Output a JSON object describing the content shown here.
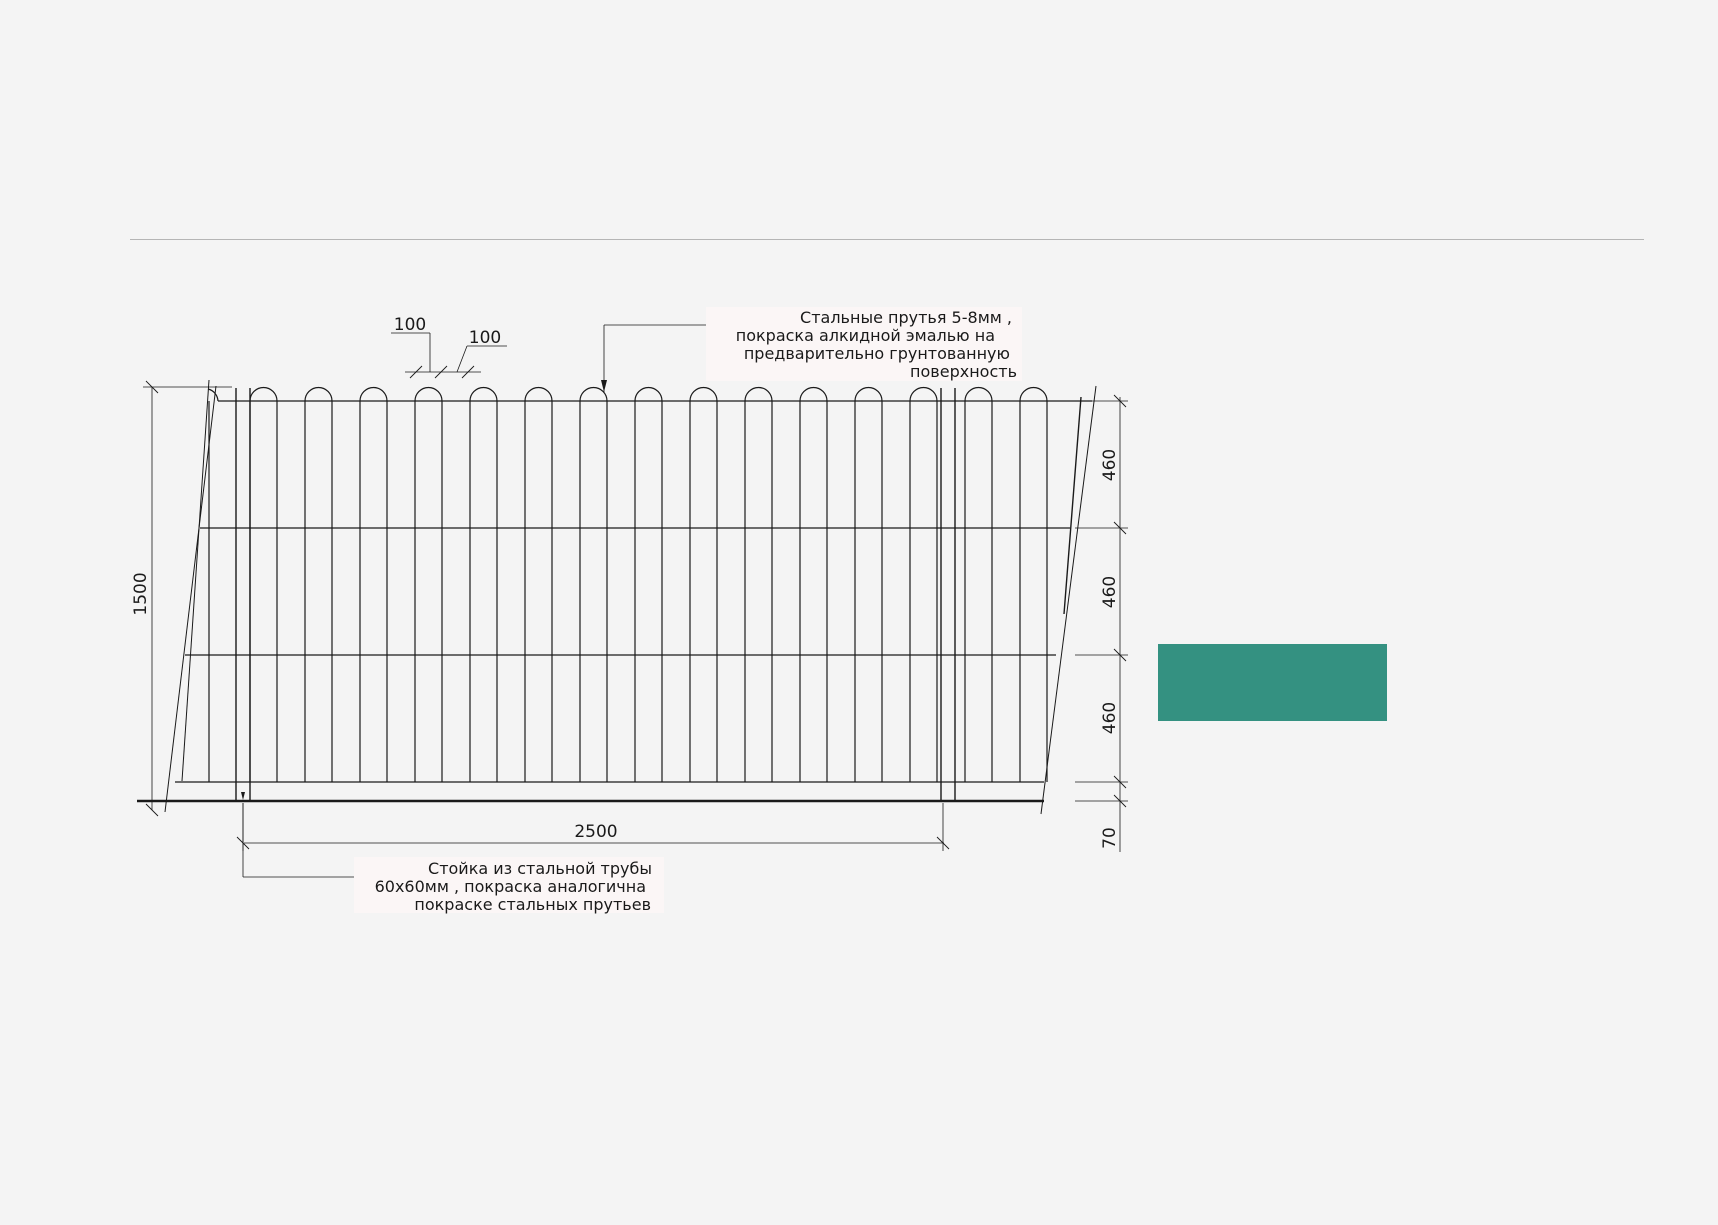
{
  "colors": {
    "background": "#f4f4f4",
    "accent_block": "#349181",
    "line": "#1a1a1a",
    "rule": "#b5b5b5",
    "note_bg": "#fbf6f6"
  },
  "drawing": {
    "top_note": [
      "Стальные прутья  5-8мм ,",
      "покраска алкидной эмалью на",
      "предварительно грунтованную",
      "поверхность"
    ],
    "bottom_note": [
      "Стойка из стальной трубы",
      "60х60мм , покраска аналогична",
      "покраске стальных прутьев"
    ],
    "dims": {
      "pitch_a": "100",
      "pitch_b": "100",
      "total_height": "1500",
      "span": "2500",
      "section_1": "460",
      "section_2": "460",
      "section_3": "460",
      "base_gap": "70"
    }
  }
}
